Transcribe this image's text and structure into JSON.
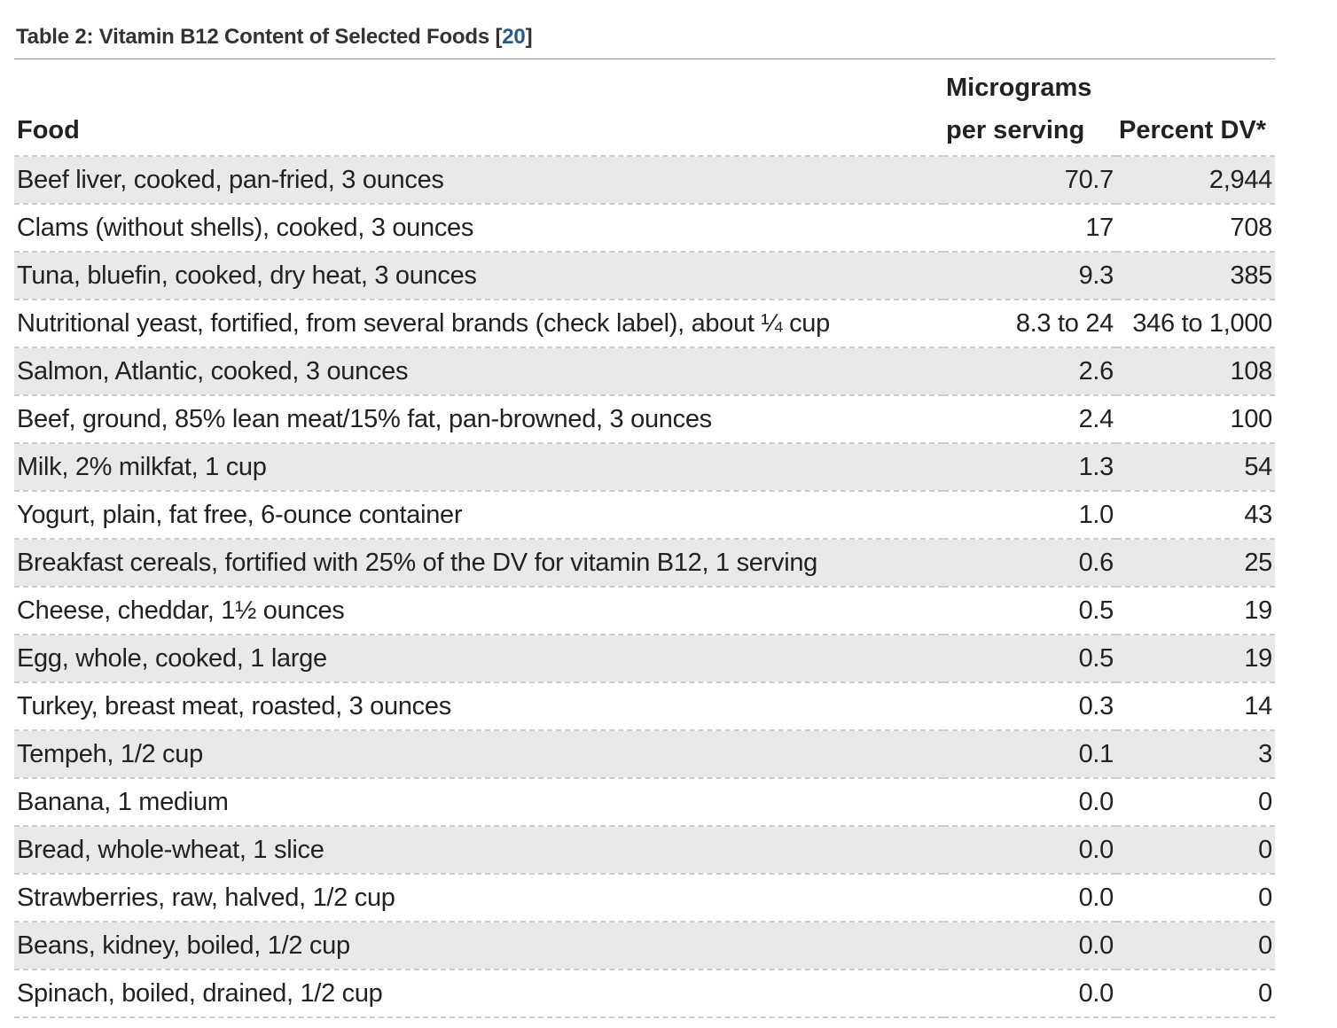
{
  "caption": {
    "text": "Table 2: Vitamin B12 Content of Selected Foods",
    "ref_open": "[",
    "ref": "20",
    "ref_close": "]"
  },
  "table": {
    "headers": [
      "Food",
      "Micrograms per serving",
      "Percent DV*"
    ],
    "rows": [
      [
        "Beef liver, cooked, pan-fried, 3 ounces",
        "70.7",
        "2,944"
      ],
      [
        "Clams (without shells), cooked, 3 ounces",
        "17",
        "708"
      ],
      [
        "Tuna, bluefin, cooked, dry heat, 3 ounces",
        "9.3",
        "385"
      ],
      [
        "Nutritional yeast, fortified, from several brands (check label), about ¼ cup",
        "8.3 to 24",
        "346 to 1,000"
      ],
      [
        "Salmon, Atlantic, cooked, 3 ounces",
        "2.6",
        "108"
      ],
      [
        "Beef, ground, 85% lean meat/15% fat, pan-browned, 3 ounces",
        "2.4",
        "100"
      ],
      [
        "Milk, 2% milkfat, 1 cup",
        "1.3",
        "54"
      ],
      [
        "Yogurt, plain, fat free, 6-ounce container",
        "1.0",
        "43"
      ],
      [
        "Breakfast cereals, fortified with 25% of the DV for vitamin B12, 1 serving",
        "0.6",
        "25"
      ],
      [
        "Cheese, cheddar, 1½ ounces",
        "0.5",
        "19"
      ],
      [
        "Egg, whole, cooked, 1 large",
        "0.5",
        "19"
      ],
      [
        "Turkey, breast meat, roasted, 3 ounces",
        "0.3",
        "14"
      ],
      [
        "Tempeh, 1/2 cup",
        "0.1",
        "3"
      ],
      [
        "Banana, 1 medium",
        "0.0",
        "0"
      ],
      [
        "Bread, whole-wheat, 1 slice",
        "0.0",
        "0"
      ],
      [
        "Strawberries, raw, halved, 1/2 cup",
        "0.0",
        "0"
      ],
      [
        "Beans, kidney, boiled, 1/2 cup",
        "0.0",
        "0"
      ],
      [
        "Spinach, boiled, drained, 1/2 cup",
        "0.0",
        "0"
      ]
    ]
  }
}
